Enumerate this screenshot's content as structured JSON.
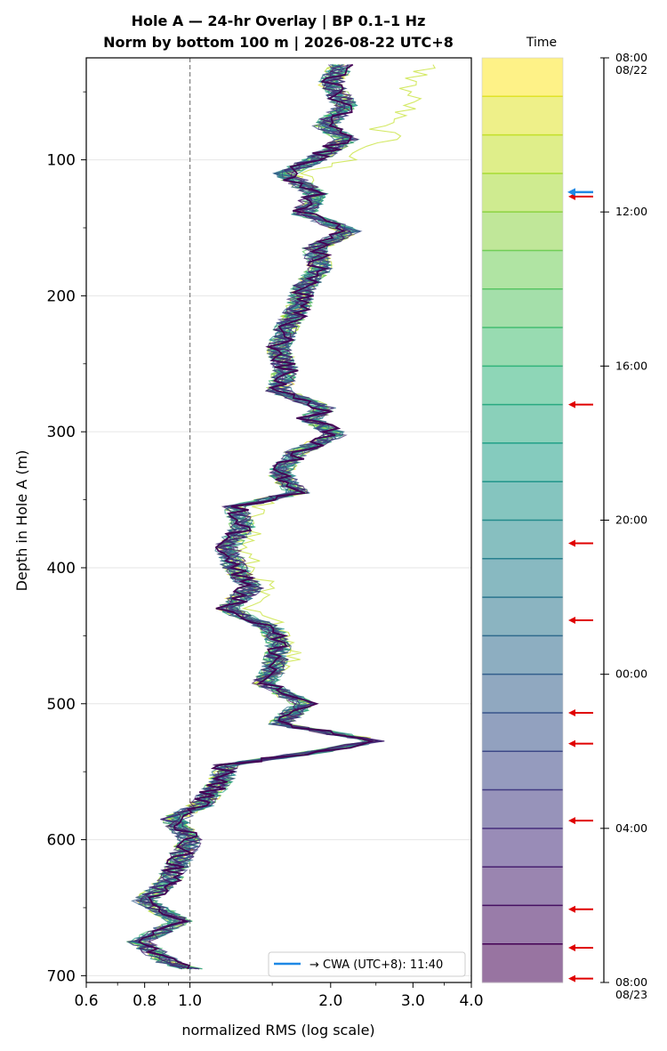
{
  "chart_data": {
    "type": "line",
    "title_line1": "Hole A — 24-hr Overlay  |  BP 0.1–1 Hz",
    "title_line2": "Norm by bottom 100 m  |  2026-08-22 UTC+8",
    "xlabel": "normalized RMS  (log scale)",
    "ylabel": "Depth in Hole A (m)",
    "xscale": "log",
    "xlim": [
      0.6,
      4.0
    ],
    "ylim": [
      705,
      25
    ],
    "y_inverted": true,
    "x_ticks": [
      {
        "value": 0.6,
        "label": "0.6"
      },
      {
        "value": 0.8,
        "label": "0.8"
      },
      {
        "value": 1.0,
        "label": "1.0"
      },
      {
        "value": 2.0,
        "label": "2.0"
      },
      {
        "value": 3.0,
        "label": "3.0"
      },
      {
        "value": 4.0,
        "label": "4.0"
      }
    ],
    "y_ticks": [
      {
        "value": 100,
        "label": "100"
      },
      {
        "value": 200,
        "label": "200"
      },
      {
        "value": 300,
        "label": "300"
      },
      {
        "value": 400,
        "label": "400"
      },
      {
        "value": 500,
        "label": "500"
      },
      {
        "value": 600,
        "label": "600"
      },
      {
        "value": 700,
        "label": "700"
      }
    ],
    "reference_line_x": 1.0,
    "grid": "horizontal",
    "legend": {
      "label": "→ CWA (UTC+8): 11:40",
      "placement": "lower-right",
      "color": "#1e88e5"
    },
    "depth_profile": [
      {
        "depth": 30,
        "rms": 2.1
      },
      {
        "depth": 45,
        "rms": 2.0
      },
      {
        "depth": 60,
        "rms": 2.15
      },
      {
        "depth": 75,
        "rms": 1.95
      },
      {
        "depth": 85,
        "rms": 2.15
      },
      {
        "depth": 100,
        "rms": 1.85
      },
      {
        "depth": 110,
        "rms": 1.6
      },
      {
        "depth": 125,
        "rms": 1.85
      },
      {
        "depth": 140,
        "rms": 1.75
      },
      {
        "depth": 152,
        "rms": 2.2
      },
      {
        "depth": 165,
        "rms": 1.85
      },
      {
        "depth": 180,
        "rms": 1.9
      },
      {
        "depth": 195,
        "rms": 1.75
      },
      {
        "depth": 210,
        "rms": 1.7
      },
      {
        "depth": 225,
        "rms": 1.6
      },
      {
        "depth": 240,
        "rms": 1.55
      },
      {
        "depth": 255,
        "rms": 1.6
      },
      {
        "depth": 270,
        "rms": 1.55
      },
      {
        "depth": 283,
        "rms": 1.95
      },
      {
        "depth": 290,
        "rms": 1.8
      },
      {
        "depth": 302,
        "rms": 2.05
      },
      {
        "depth": 315,
        "rms": 1.7
      },
      {
        "depth": 330,
        "rms": 1.55
      },
      {
        "depth": 345,
        "rms": 1.7
      },
      {
        "depth": 355,
        "rms": 1.25
      },
      {
        "depth": 370,
        "rms": 1.3
      },
      {
        "depth": 385,
        "rms": 1.2
      },
      {
        "depth": 400,
        "rms": 1.25
      },
      {
        "depth": 415,
        "rms": 1.35
      },
      {
        "depth": 430,
        "rms": 1.2
      },
      {
        "depth": 445,
        "rms": 1.5
      },
      {
        "depth": 460,
        "rms": 1.55
      },
      {
        "depth": 475,
        "rms": 1.5
      },
      {
        "depth": 485,
        "rms": 1.45
      },
      {
        "depth": 500,
        "rms": 1.75
      },
      {
        "depth": 515,
        "rms": 1.55
      },
      {
        "depth": 527,
        "rms": 2.5
      },
      {
        "depth": 535,
        "rms": 1.9
      },
      {
        "depth": 545,
        "rms": 1.2
      },
      {
        "depth": 560,
        "rms": 1.15
      },
      {
        "depth": 575,
        "rms": 1.05
      },
      {
        "depth": 585,
        "rms": 0.92
      },
      {
        "depth": 600,
        "rms": 1.0
      },
      {
        "depth": 615,
        "rms": 0.95
      },
      {
        "depth": 630,
        "rms": 0.9
      },
      {
        "depth": 645,
        "rms": 0.8
      },
      {
        "depth": 660,
        "rms": 0.95
      },
      {
        "depth": 675,
        "rms": 0.78
      },
      {
        "depth": 690,
        "rms": 0.9
      },
      {
        "depth": 695,
        "rms": 1.0
      }
    ],
    "series_count": 24,
    "colorbar": {
      "title": "Time",
      "ticks": [
        "08:00\n08/22",
        "12:00",
        "16:00",
        "20:00",
        "00:00",
        "04:00",
        "08:00\n08/23"
      ],
      "hours_span": 24,
      "arrows_hours": [
        3.6,
        9.0,
        12.6,
        14.6,
        17.0,
        17.8,
        19.8,
        22.1,
        23.1,
        23.9
      ],
      "cwa_arrow_hours": 3.67
    }
  }
}
